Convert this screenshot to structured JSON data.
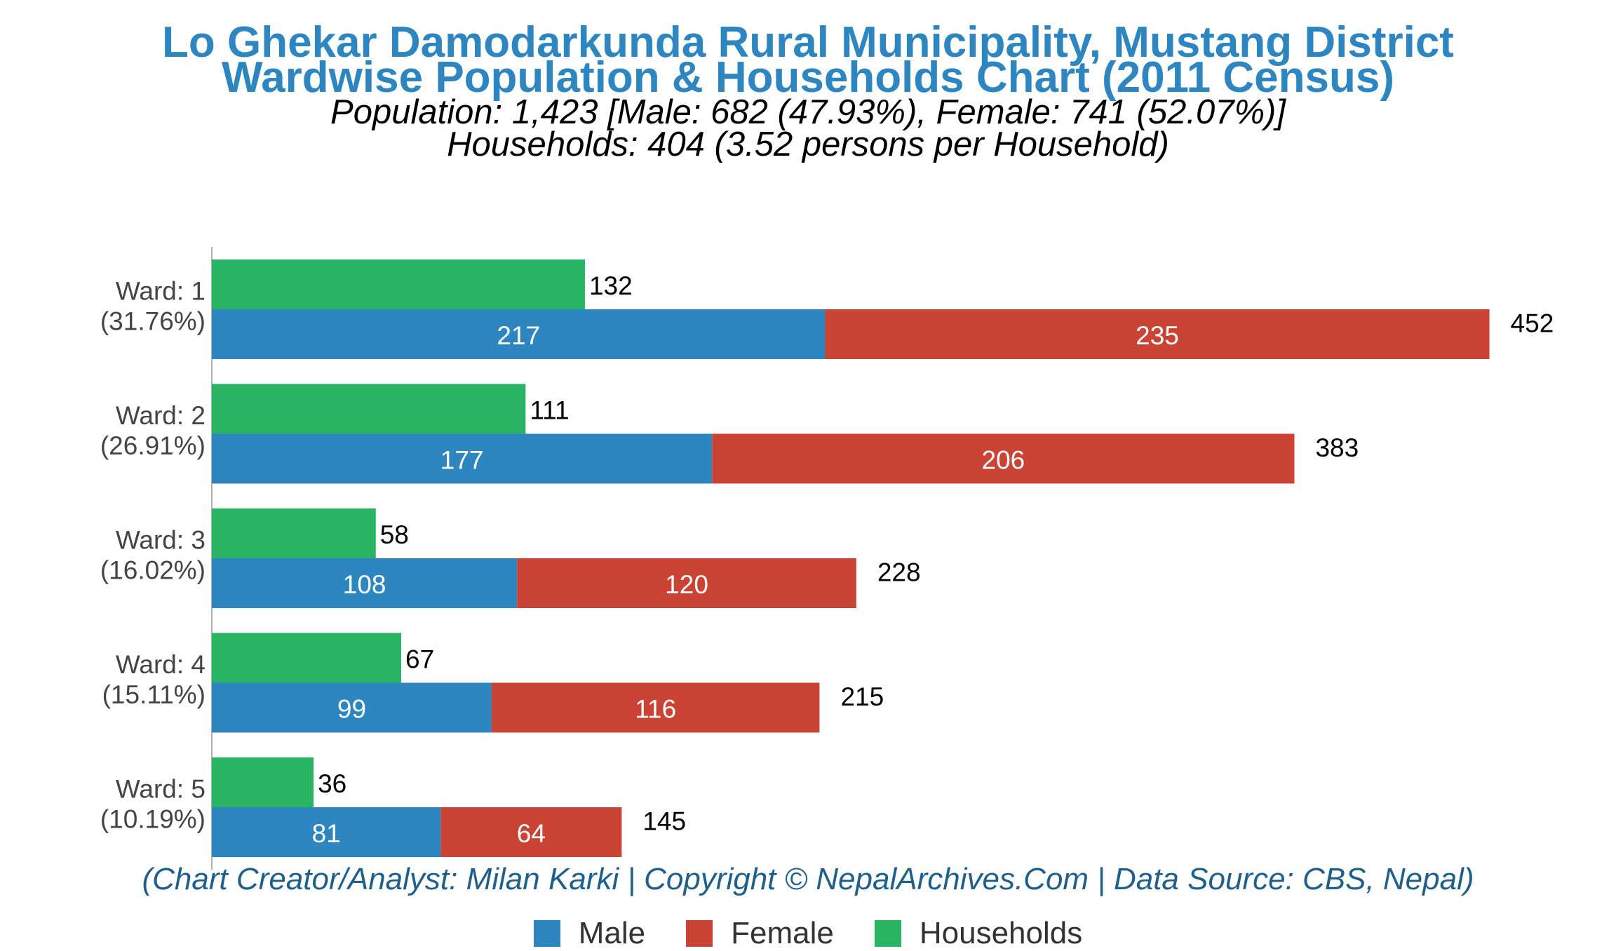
{
  "title_line1": "Lo Ghekar Damodarkunda Rural Municipality, Mustang District",
  "title_line2": "Wardwise Population & Households Chart (2011 Census)",
  "subtitle_line1": "Population: 1,423 [Male: 682 (47.93%), Female: 741 (52.07%)]",
  "subtitle_line2": "Households: 404 (3.52 persons per Household)",
  "footer": "(Chart Creator/Analyst: Milan Karki | Copyright © NepalArchives.Com | Data Source: CBS, Nepal)",
  "colors": {
    "male": "#2e86c1",
    "female": "#cb4335",
    "households": "#28b463"
  },
  "chart_data": {
    "type": "bar",
    "orientation": "horizontal",
    "categories": [
      "Ward: 1",
      "Ward: 2",
      "Ward: 3",
      "Ward: 4",
      "Ward: 5"
    ],
    "category_shares": [
      "(31.76%)",
      "(26.91%)",
      "(16.02%)",
      "(15.11%)",
      "(10.19%)"
    ],
    "series": [
      {
        "name": "Male",
        "values": [
          217,
          177,
          108,
          99,
          81
        ],
        "stack": "population"
      },
      {
        "name": "Female",
        "values": [
          235,
          206,
          120,
          116,
          64
        ],
        "stack": "population"
      },
      {
        "name": "Households",
        "values": [
          132,
          111,
          58,
          67,
          36
        ],
        "stack": "households"
      }
    ],
    "totals": [
      452,
      383,
      228,
      215,
      145
    ],
    "xlim": [
      0,
      460
    ],
    "grid": false,
    "legend_position": "bottom"
  }
}
